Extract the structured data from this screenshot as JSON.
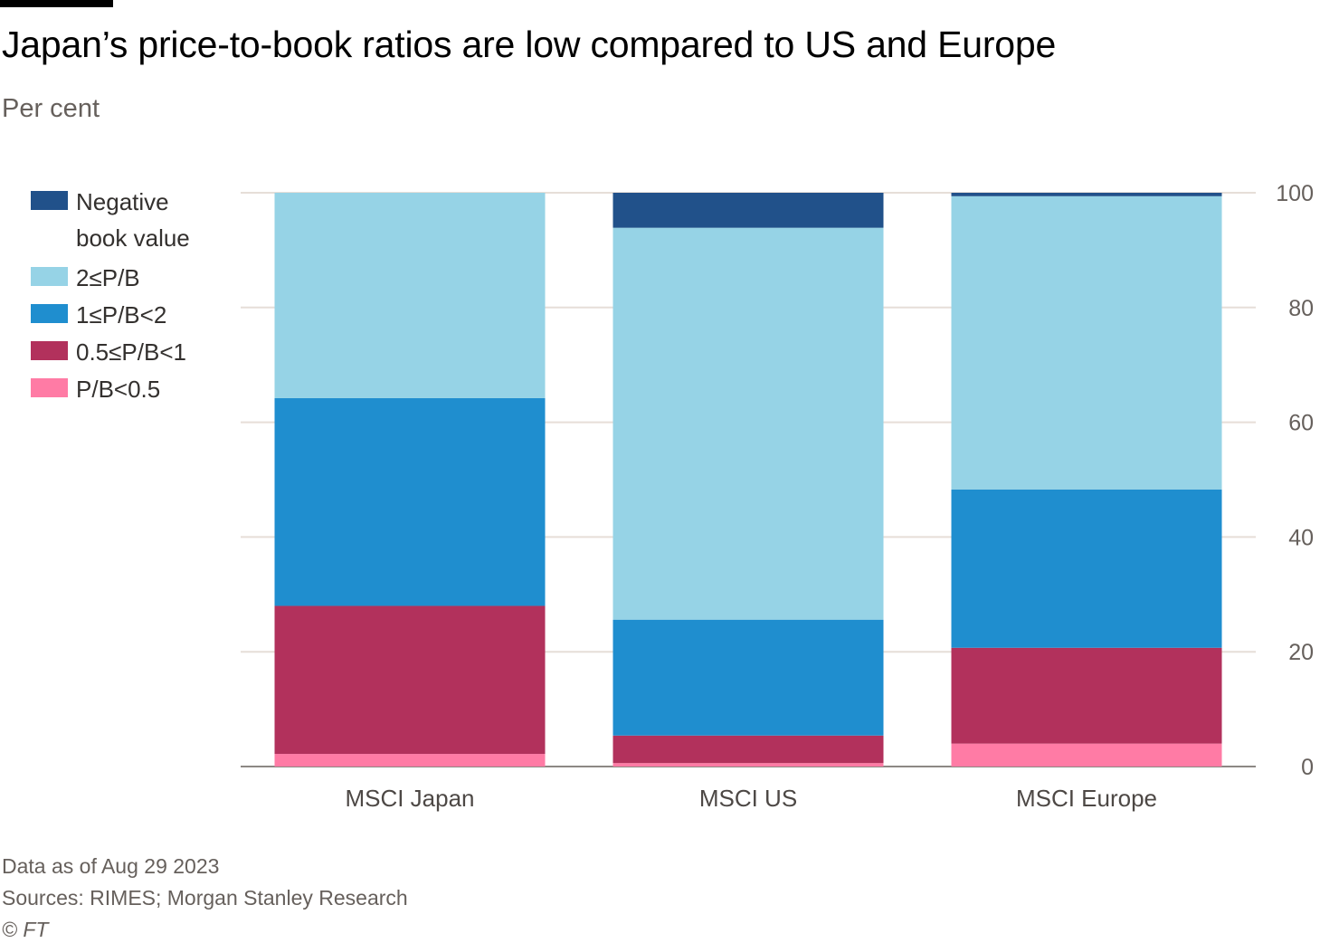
{
  "header": {
    "title": "Japan’s price-to-book ratios are low compared to US and Europe",
    "subtitle": "Per cent"
  },
  "footer": {
    "date_note": "Data as of Aug 29 2023",
    "sources": "Sources: RIMES; Morgan Stanley Research",
    "copyright": "© FT"
  },
  "colors": {
    "negative_book_value": "#21518a",
    "pb_2_plus": "#96d3e6",
    "pb_1_to_2": "#1f8ecf",
    "pb_05_to_1": "#b2315c",
    "pb_under_05": "#ff7ba5",
    "grid": "#e6ded8",
    "axis": "#66605c"
  },
  "chart_data": {
    "type": "bar",
    "stacked": true,
    "categories": [
      "MSCI Japan",
      "MSCI US",
      "MSCI Europe"
    ],
    "series": [
      {
        "name": "P/B<0.5",
        "color": "#ff7ba5",
        "values": [
          2.2,
          0.6,
          4.0
        ]
      },
      {
        "name": "0.5≤P/B<1",
        "color": "#b2315c",
        "values": [
          25.8,
          4.8,
          16.7
        ]
      },
      {
        "name": "1≤P/B<2",
        "color": "#1f8ecf",
        "values": [
          36.2,
          20.2,
          27.6
        ]
      },
      {
        "name": "2≤P/B",
        "color": "#96d3e6",
        "values": [
          35.8,
          68.3,
          51.1
        ]
      },
      {
        "name": "Negative book value",
        "color": "#21518a",
        "values": [
          0.0,
          6.1,
          0.6
        ]
      }
    ],
    "legend_order": [
      "Negative book value",
      "2≤P/B",
      "1≤P/B<2",
      "0.5≤P/B<1",
      "P/B<0.5"
    ],
    "legend_labels": [
      [
        "Negative",
        "book value"
      ],
      [
        "2≤P/B"
      ],
      [
        "1≤P/B<2"
      ],
      [
        "0.5≤P/B<1"
      ],
      [
        "P/B<0.5"
      ]
    ],
    "ylim": [
      0,
      100
    ],
    "yticks": [
      0,
      20,
      40,
      60,
      80,
      100
    ],
    "y_axis_side": "right",
    "grid": true,
    "legend_position": "left",
    "xlabel": "",
    "ylabel": ""
  }
}
